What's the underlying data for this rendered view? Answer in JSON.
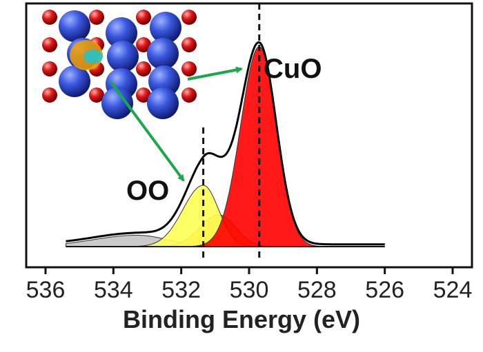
{
  "chart_data": {
    "type": "area",
    "title": "",
    "xlabel": "Binding Energy (eV)",
    "ylabel": "",
    "xlim": [
      536,
      524
    ],
    "x_reversed": true,
    "xticks": [
      "536",
      "534",
      "532",
      "530",
      "528",
      "526",
      "524"
    ],
    "grid": false,
    "baseline": 0.02,
    "series": [
      {
        "kind": "component-peak",
        "label": "OO",
        "color": "#ffff55",
        "center": 531.35,
        "height": 0.27,
        "sigma_left": 0.6,
        "sigma_right": 0.45
      },
      {
        "kind": "component-peak",
        "color": "#ffa500",
        "center": 530.9,
        "height": 0.14,
        "sigma_left": 0.55,
        "sigma_right": 0.5
      },
      {
        "kind": "component-peak",
        "label": "CuO",
        "color": "#ff0000",
        "center": 529.7,
        "height": 0.88,
        "sigma_left": 0.55,
        "sigma_right": 0.5
      },
      {
        "kind": "component-peak",
        "color": "#b4b4b4",
        "center": 533.3,
        "height": 0.05,
        "sigma_left": 1.3,
        "sigma_right": 0.9
      }
    ],
    "reference_lines_x": [
      531.35,
      529.7
    ],
    "annotations": [
      {
        "text": "CuO",
        "target_x": 529.7
      },
      {
        "text": "OO",
        "target_x": 531.35
      }
    ]
  },
  "inset": {
    "description_icon": "crystal-structure-icon",
    "colors": {
      "cu": "#2f4fd6",
      "o": "#e01818",
      "vacancy_outer": "#f0a000",
      "vacancy_inner": "#19c6d6"
    },
    "arrow_color": "#1aa84a"
  }
}
